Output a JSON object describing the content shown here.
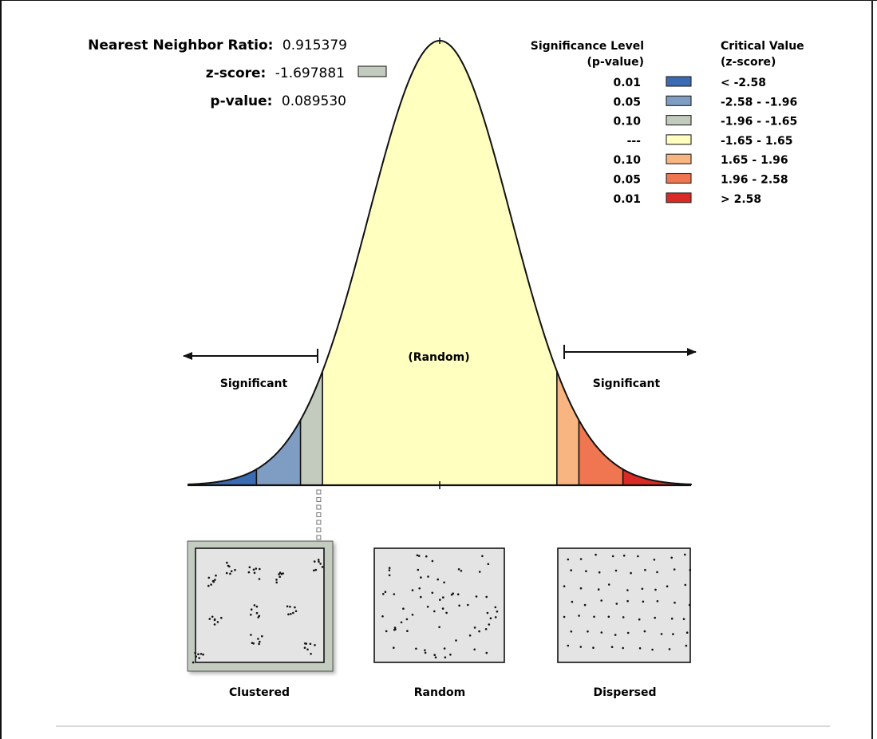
{
  "stats": {
    "nnr_label": "Nearest Neighbor Ratio:",
    "nnr_value": "0.915379",
    "z_label": "z-score:",
    "z_value": "-1.697881",
    "p_label": "p-value:",
    "p_value": "0.089530"
  },
  "legend": {
    "sig_header_1": "Significance Level",
    "sig_header_2": "(p-value)",
    "crit_header_1": "Critical Value",
    "crit_header_2": "(z-score)",
    "rows": [
      {
        "p": "0.01",
        "z": "< -2.58",
        "color": "#3b6bb3"
      },
      {
        "p": "0.05",
        "z": "-2.58 - -1.96",
        "color": "#7f9cc2"
      },
      {
        "p": "0.10",
        "z": "-1.96 - -1.65",
        "color": "#c2cbbd"
      },
      {
        "p": "---",
        "z": "-1.65 - 1.65",
        "color": "#ffffc0"
      },
      {
        "p": "0.10",
        "z": "1.65 - 1.96",
        "color": "#f8b582"
      },
      {
        "p": "0.05",
        "z": "1.96 - 2.58",
        "color": "#ef7650"
      },
      {
        "p": "0.01",
        "z": "> 2.58",
        "color": "#d92a26"
      }
    ]
  },
  "curve": {
    "random_label": "(Random)",
    "left_significant": "Significant",
    "right_significant": "Significant",
    "z_marker": -1.697881
  },
  "patterns": [
    {
      "label": "Clustered"
    },
    {
      "label": "Random"
    },
    {
      "label": "Dispersed"
    }
  ]
}
